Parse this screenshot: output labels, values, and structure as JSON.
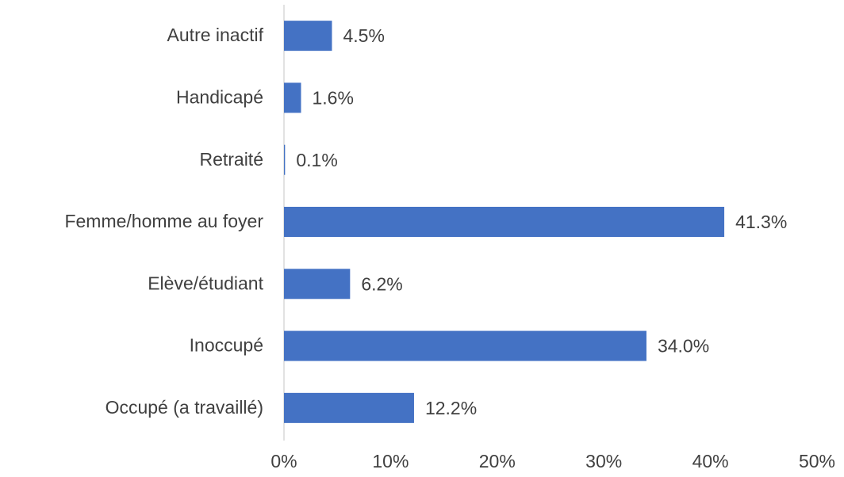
{
  "chart_data": {
    "type": "bar",
    "orientation": "horizontal",
    "categories": [
      "Autre inactif",
      "Handicapé",
      "Retraité",
      "Femme/homme au foyer",
      "Elève/étudiant",
      "Inoccupé",
      "Occupé (a travaillé)"
    ],
    "values": [
      4.5,
      1.6,
      0.1,
      41.3,
      6.2,
      34.0,
      12.2
    ],
    "value_labels": [
      "4.5%",
      "1.6%",
      "0.1%",
      "41.3%",
      "6.2%",
      "34.0%",
      "12.2%"
    ],
    "color": "#4472c4",
    "xlim": [
      0,
      50
    ],
    "xticks": [
      {
        "value": 0,
        "label": "0%"
      },
      {
        "value": 10,
        "label": "10%"
      },
      {
        "value": 20,
        "label": "20%"
      },
      {
        "value": 30,
        "label": "30%"
      },
      {
        "value": 40,
        "label": "40%"
      },
      {
        "value": 50,
        "label": "50%"
      }
    ],
    "grid": false
  }
}
